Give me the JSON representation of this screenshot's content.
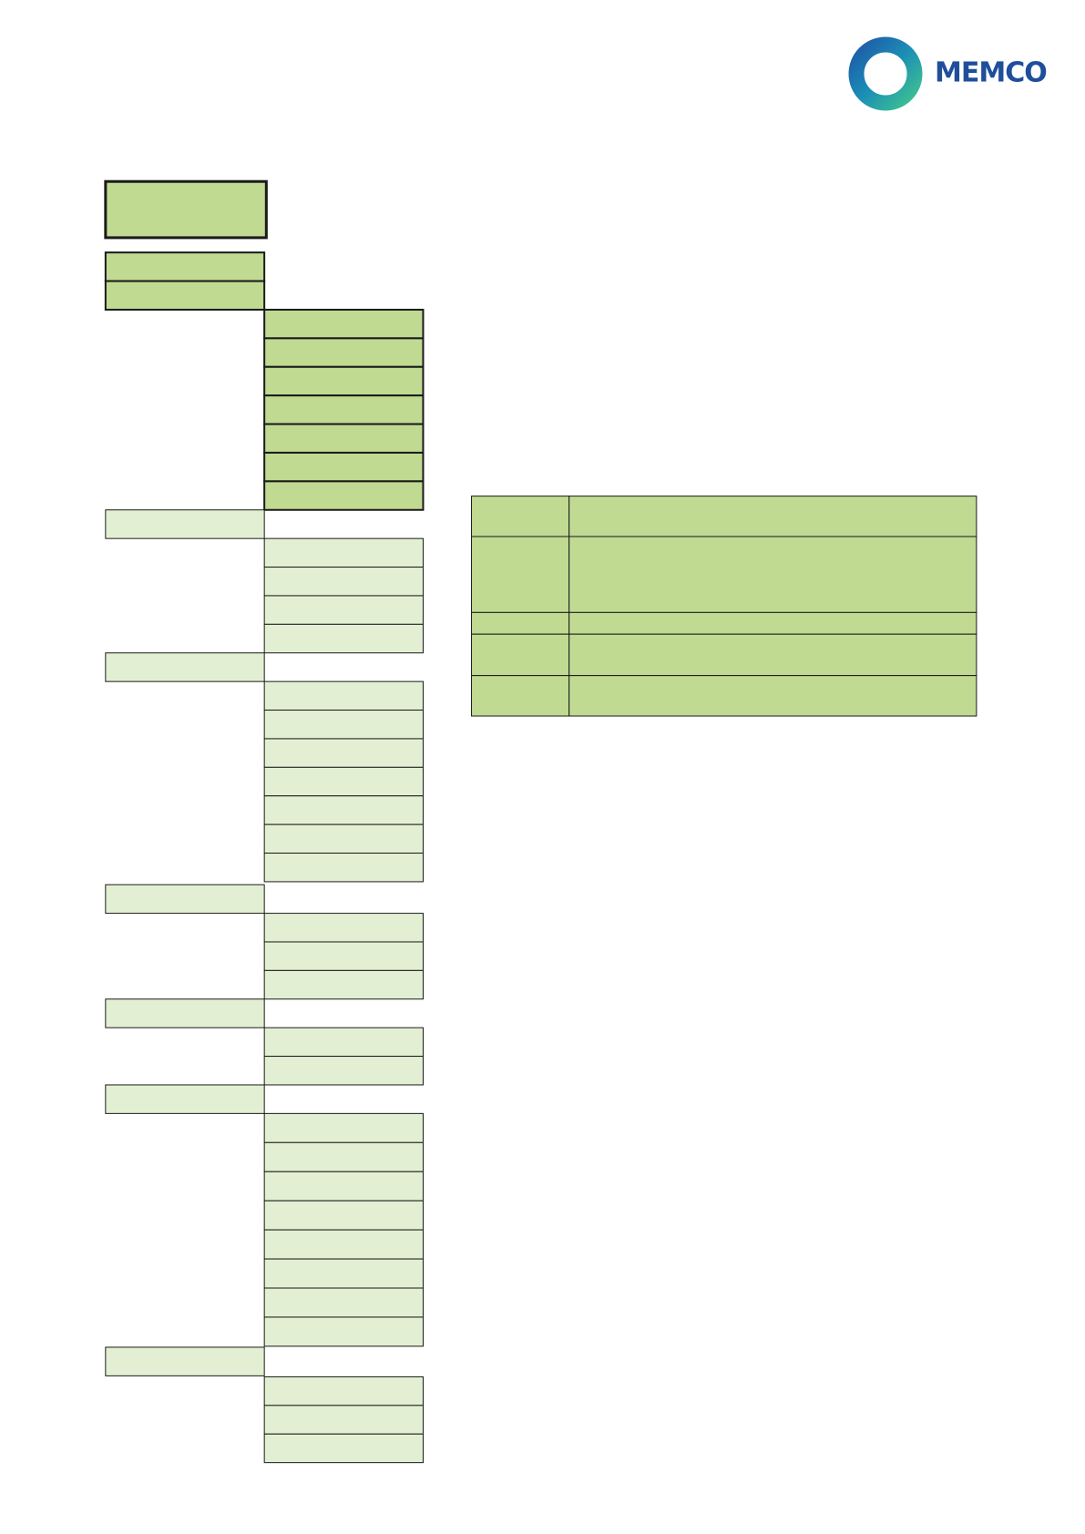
{
  "logo": {
    "text": "MEMCO"
  }
}
